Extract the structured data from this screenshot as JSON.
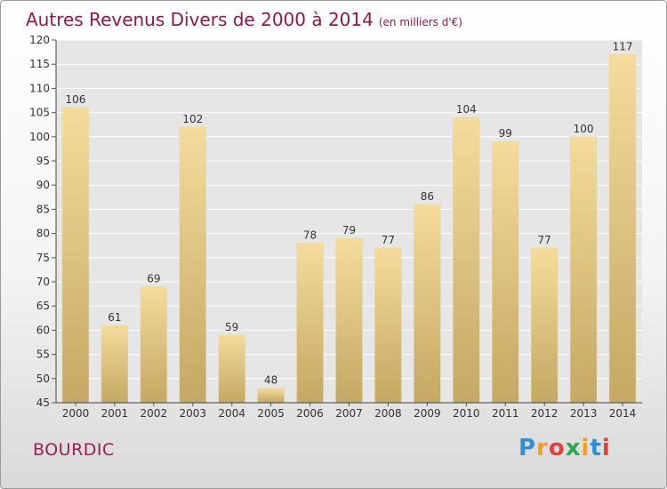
{
  "title": "Autres Revenus Divers de 2000 à 2014",
  "title_unit": "(en milliers d'€)",
  "city": "BOURDIC",
  "logo": {
    "text": "Proxiti",
    "colors": [
      "#2f8fd0",
      "#f0a020",
      "#e04040",
      "#2fa84a",
      "#f0a020",
      "#2f8fd0",
      "#e04040"
    ]
  },
  "colors": {
    "title": "#8b1a4a",
    "bar_light": "#f5dc9c",
    "bar_dark": "#c4a863",
    "plot_bg": "#e6e6e6",
    "grid": "#ffffff"
  },
  "chart_data": {
    "type": "bar",
    "categories": [
      "2000",
      "2001",
      "2002",
      "2003",
      "2004",
      "2005",
      "2006",
      "2007",
      "2008",
      "2009",
      "2010",
      "2011",
      "2012",
      "2013",
      "2014"
    ],
    "values": [
      106,
      61,
      69,
      102,
      59,
      48,
      78,
      79,
      77,
      86,
      104,
      99,
      77,
      100,
      117
    ],
    "ylim": [
      45,
      120
    ],
    "yticks": [
      45,
      50,
      55,
      60,
      65,
      70,
      75,
      80,
      85,
      90,
      95,
      100,
      105,
      110,
      115,
      120
    ],
    "grid": true
  }
}
